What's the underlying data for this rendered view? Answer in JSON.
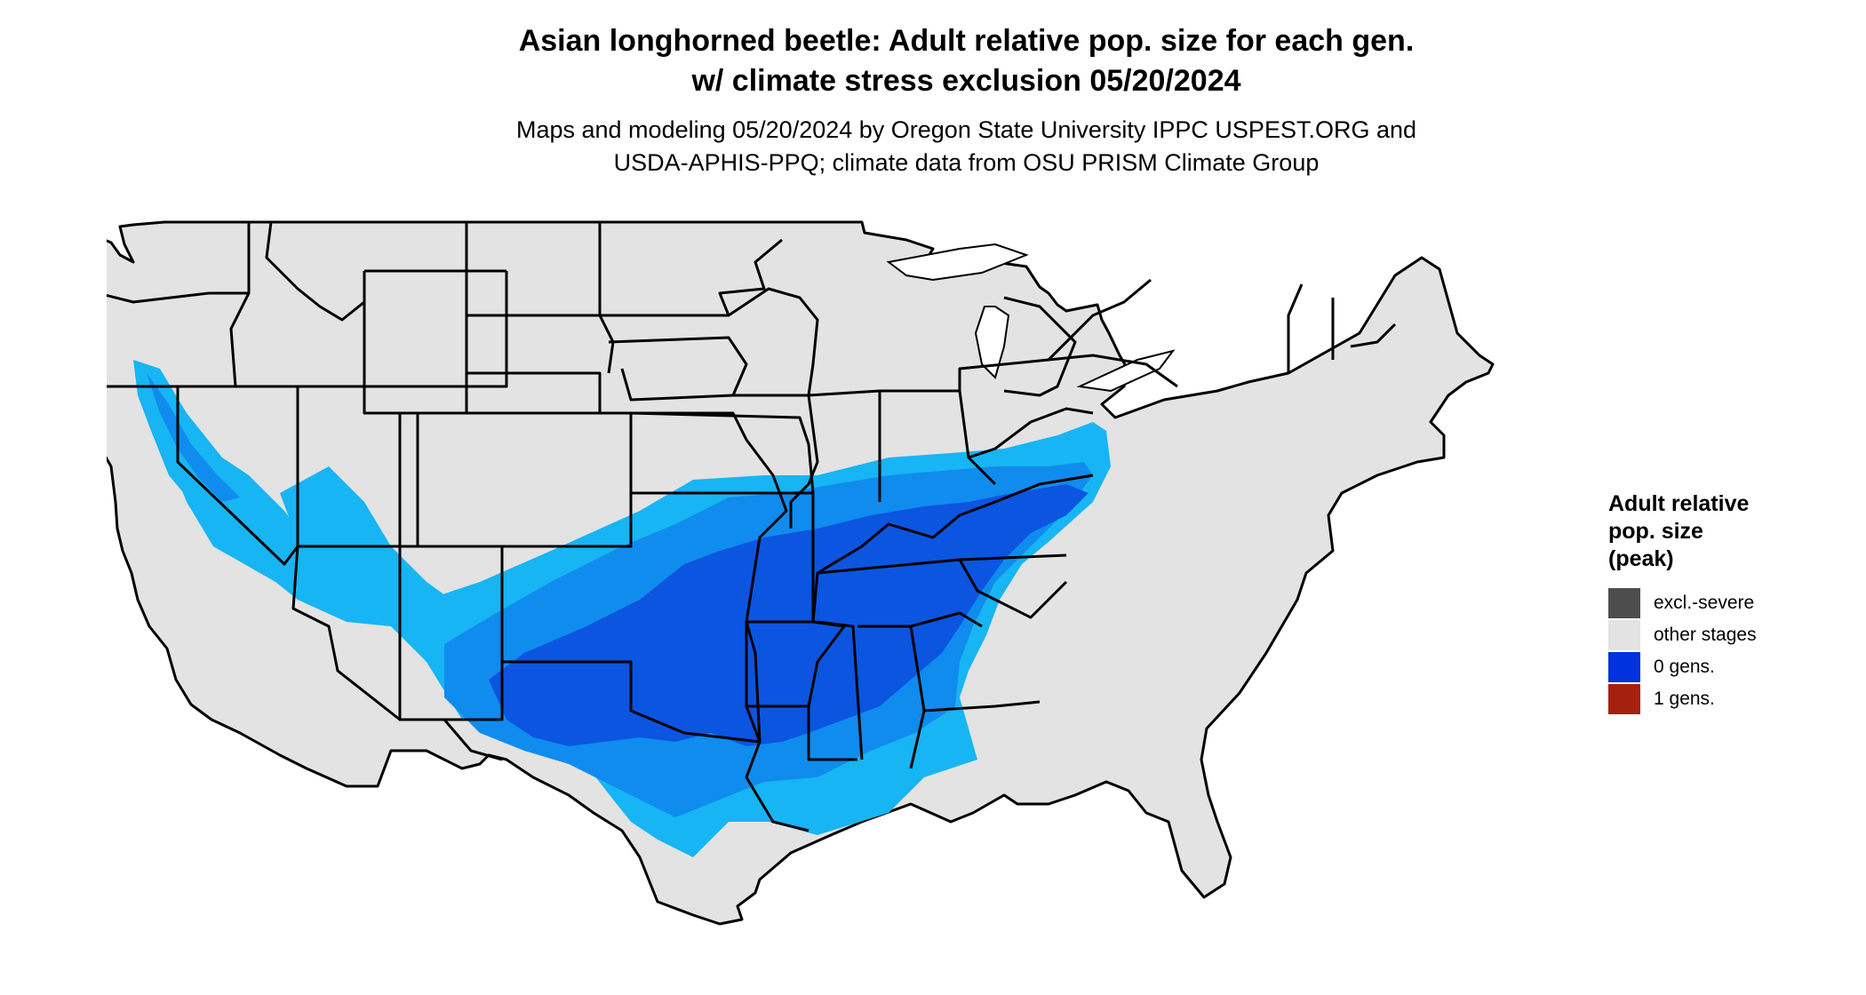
{
  "title": {
    "line1": "Asian longhorned beetle: Adult relative pop. size for each gen.",
    "line2": "w/ climate stress exclusion 05/20/2024"
  },
  "subtitle": {
    "line1": "Maps and modeling 05/20/2024 by Oregon State University IPPC USPEST.ORG and",
    "line2": "USDA-APHIS-PPQ; climate data from OSU PRISM Climate Group"
  },
  "legend": {
    "title_line1": "Adult relative",
    "title_line2": "pop. size",
    "title_line3": "(peak)",
    "items": [
      {
        "label": "excl.-severe",
        "color": "#4d4d4d"
      },
      {
        "label": "other stages",
        "color": "#e3e3e3"
      },
      {
        "label": "0 gens.",
        "color": "#0033dd"
      },
      {
        "label": "1 gens.",
        "color": "#a6200f"
      }
    ]
  },
  "map": {
    "region": "Contiguous United States",
    "colors": {
      "land": "#e3e3e3",
      "light_blue": "#17b5f3",
      "mid_blue": "#0f8cee",
      "dark_blue": "#0b55e0",
      "boundary": "#000000"
    }
  }
}
